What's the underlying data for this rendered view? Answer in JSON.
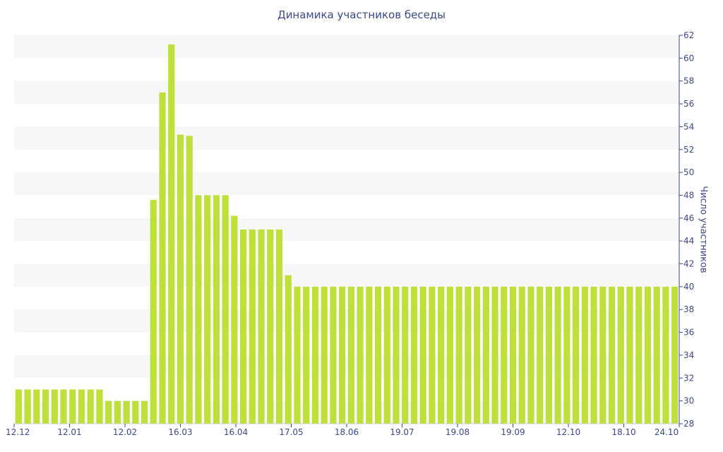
{
  "chart_data": {
    "type": "bar",
    "title": "Динамика участников беседы",
    "xlabel": "",
    "ylabel": "Число участников",
    "ylim": [
      28,
      62
    ],
    "yticks": [
      28,
      30,
      32,
      34,
      36,
      38,
      40,
      42,
      44,
      46,
      48,
      50,
      52,
      54,
      56,
      58,
      60,
      62
    ],
    "y_axis_side": "right",
    "grid": "alternating horizontal bands",
    "x_tick_labels": [
      "12.12",
      "12.01",
      "12.02",
      "16.03",
      "16.04",
      "17.05",
      "18.06",
      "19.07",
      "19.08",
      "19.09",
      "12.10",
      "18.10",
      "24.10"
    ],
    "bar_color": "#bde03a",
    "band_color": "#f7f7f7",
    "values": [
      31,
      31,
      31,
      31,
      31,
      31,
      31,
      31,
      31,
      31,
      30,
      30,
      30,
      30,
      30,
      47.6,
      57,
      61.2,
      53.3,
      53.2,
      48,
      48,
      48,
      48,
      46.2,
      45,
      45,
      45,
      45,
      45,
      41,
      40,
      40,
      40,
      40,
      40,
      40,
      40,
      40,
      40,
      40,
      40,
      40,
      40,
      40,
      40,
      40,
      40,
      40,
      40,
      40,
      40,
      40,
      40,
      40,
      40,
      40,
      40,
      40,
      40,
      40,
      40,
      40,
      40,
      40,
      40,
      40,
      40,
      40,
      40,
      40,
      40,
      40,
      40
    ]
  }
}
